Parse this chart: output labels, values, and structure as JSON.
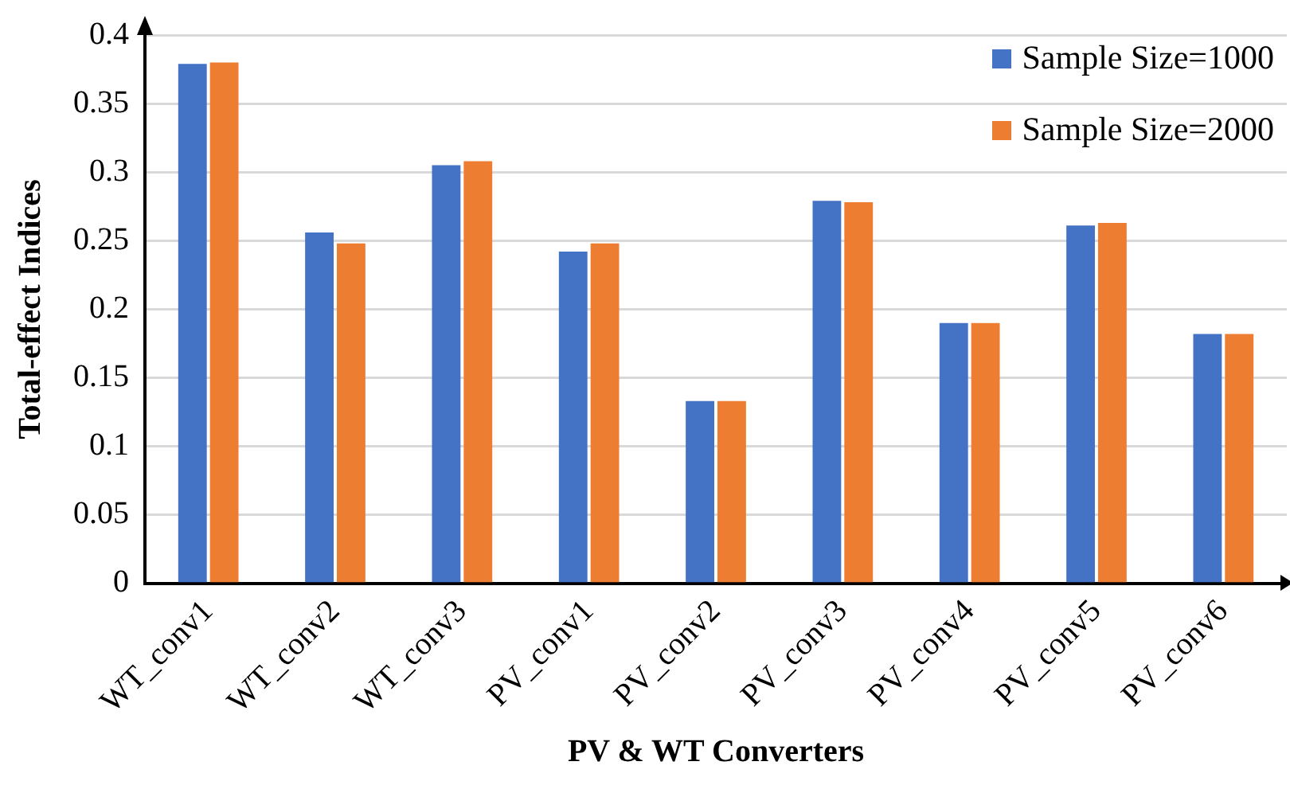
{
  "chart_data": {
    "type": "bar",
    "xlabel": "PV & WT Converters",
    "ylabel": "Total-effect Indices",
    "categories": [
      "WT_conv1",
      "WT_conv2",
      "WT_conv3",
      "PV_conv1",
      "PV_conv2",
      "PV_conv3",
      "PV_conv4",
      "PV_conv5",
      "PV_conv6"
    ],
    "series": [
      {
        "name": "Sample Size=1000",
        "color": "#4472c4",
        "values": [
          0.379,
          0.256,
          0.305,
          0.242,
          0.133,
          0.279,
          0.19,
          0.261,
          0.182
        ]
      },
      {
        "name": "Sample Size=2000",
        "color": "#ed7d31",
        "values": [
          0.38,
          0.248,
          0.308,
          0.248,
          0.133,
          0.278,
          0.19,
          0.263,
          0.182
        ]
      }
    ],
    "ylim": [
      0,
      0.4
    ],
    "yticks": [
      0,
      0.05,
      0.1,
      0.15,
      0.2,
      0.25,
      0.3,
      0.35,
      0.4
    ],
    "grid": "y",
    "legend": "top right"
  }
}
